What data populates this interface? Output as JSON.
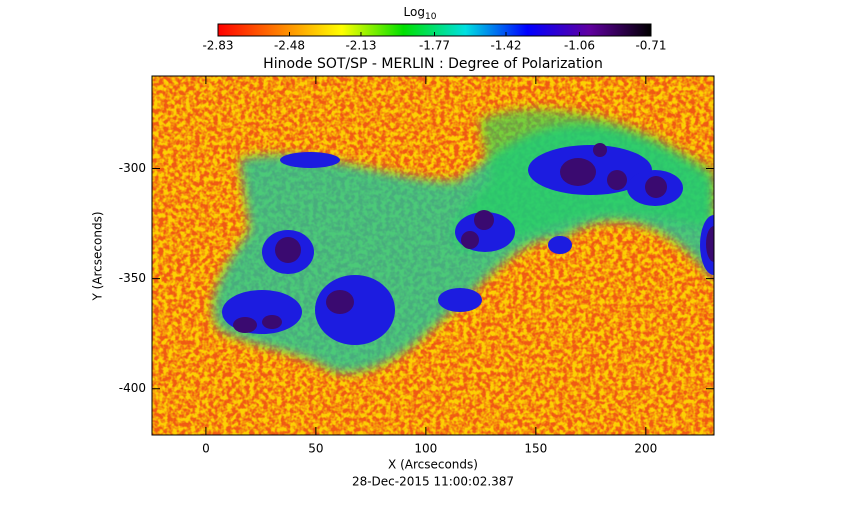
{
  "chart_data": {
    "type": "image",
    "title": "Hinode SOT/SP - MERLIN : Degree of Polarization",
    "x_label": "X (Arcseconds)",
    "y_label": "Y (Arcseconds)",
    "footer": "28-Dec-2015 11:00:02.387",
    "xlim": [
      -24.5,
      231
    ],
    "ylim": [
      -421,
      -258
    ],
    "xticks": [
      0,
      50,
      100,
      150,
      200
    ],
    "yticks": [
      -300,
      -350,
      -400
    ],
    "colorbar_label": "Log",
    "colorbar_label_sub": "10",
    "colorbar_lim": [
      -2.83,
      -0.71
    ],
    "colorbar_ticks": [
      -2.83,
      -2.48,
      -2.13,
      -1.77,
      -1.42,
      -1.06,
      -0.71
    ],
    "colormap": [
      "#ff0000",
      "#ff8000",
      "#ffff00",
      "#00e000",
      "#00e0e0",
      "#0000ff",
      "#6000a0",
      "#000000"
    ]
  }
}
